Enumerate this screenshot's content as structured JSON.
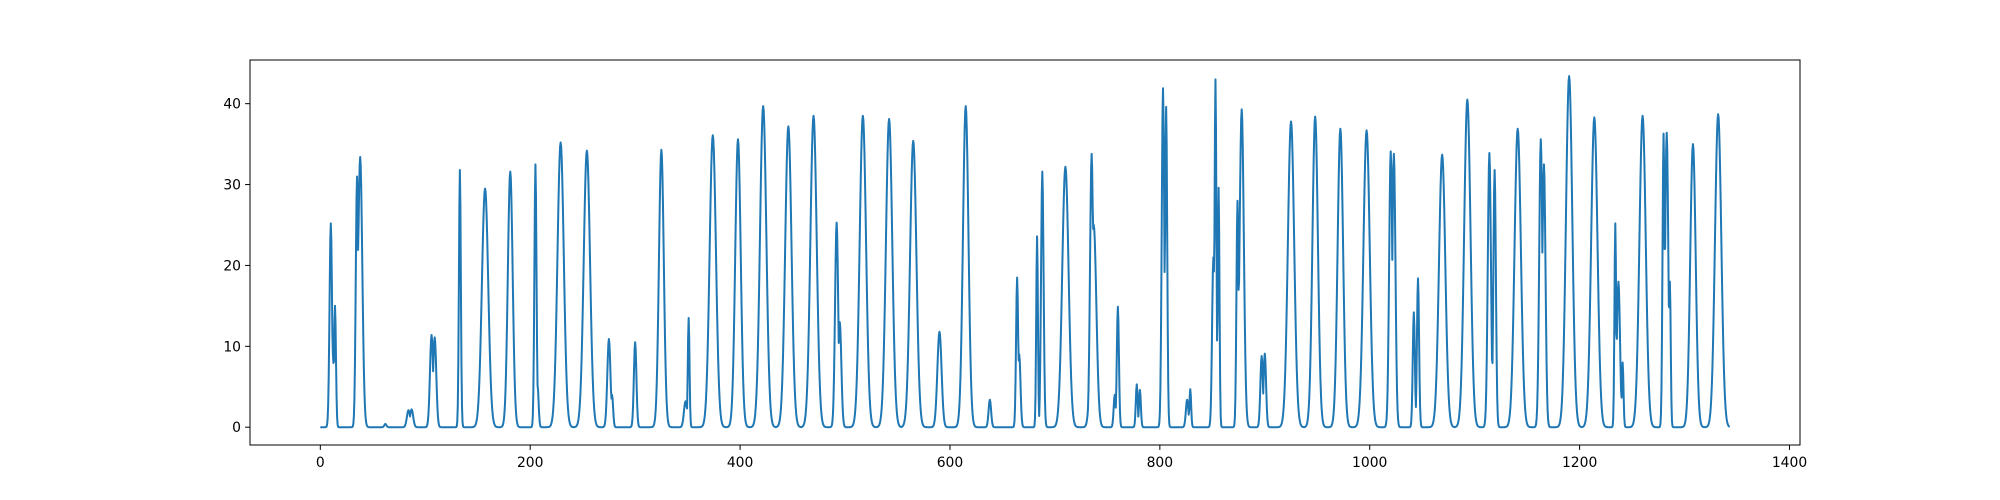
{
  "chart_data": {
    "type": "line",
    "title": "",
    "xlabel": "",
    "ylabel": "",
    "xlim": [
      -67,
      1410
    ],
    "ylim": [
      -2.2,
      45.4
    ],
    "grid": false,
    "legend": "none",
    "x_ticks": [
      0,
      200,
      400,
      600,
      800,
      1000,
      1200,
      1400
    ],
    "y_ticks": [
      0,
      10,
      20,
      30,
      40
    ],
    "x_tick_labels": [
      "0",
      "200",
      "400",
      "600",
      "800",
      "1000",
      "1200",
      "1400"
    ],
    "y_tick_labels": [
      "0",
      "10",
      "20",
      "30",
      "40"
    ],
    "x_start": 0,
    "x_end": 1343,
    "baseline": 0,
    "series": [
      {
        "color": "#1f77b4",
        "peaks": [
          {
            "x": 10,
            "y": 25.2,
            "w": 1.2
          },
          {
            "x": 12,
            "y": 9,
            "w": 1.0
          },
          {
            "x": 14,
            "y": 15,
            "w": 0.9
          },
          {
            "x": 35,
            "y": 31,
            "w": 1.2
          },
          {
            "x": 36,
            "y": 19,
            "w": 0.8
          },
          {
            "x": 38,
            "y": 33.4,
            "w": 2.0
          },
          {
            "x": 62,
            "y": 0.4,
            "w": 1.0
          },
          {
            "x": 84,
            "y": 2.1,
            "w": 1.5
          },
          {
            "x": 87,
            "y": 2.2,
            "w": 1.5
          },
          {
            "x": 106,
            "y": 11.4,
            "w": 1.5
          },
          {
            "x": 109,
            "y": 11.1,
            "w": 1.5
          },
          {
            "x": 133,
            "y": 31.8,
            "w": 0.9
          },
          {
            "x": 157,
            "y": 29.5,
            "w": 3.0
          },
          {
            "x": 181,
            "y": 31.6,
            "w": 2.3
          },
          {
            "x": 205,
            "y": 32.5,
            "w": 1.0
          },
          {
            "x": 207,
            "y": 5.2,
            "w": 1.0
          },
          {
            "x": 229,
            "y": 35.2,
            "w": 3.0
          },
          {
            "x": 254,
            "y": 34.2,
            "w": 3.0
          },
          {
            "x": 275,
            "y": 10.9,
            "w": 1.5
          },
          {
            "x": 278,
            "y": 4.0,
            "w": 1.0
          },
          {
            "x": 300,
            "y": 10.5,
            "w": 1.2
          },
          {
            "x": 325,
            "y": 34.3,
            "w": 2.3
          },
          {
            "x": 348,
            "y": 3.2,
            "w": 1.5
          },
          {
            "x": 351,
            "y": 13.5,
            "w": 0.8
          },
          {
            "x": 374,
            "y": 36.1,
            "w": 3.0
          },
          {
            "x": 398,
            "y": 35.6,
            "w": 2.6
          },
          {
            "x": 422,
            "y": 39.7,
            "w": 3.0
          },
          {
            "x": 446,
            "y": 37.2,
            "w": 3.0
          },
          {
            "x": 470,
            "y": 38.5,
            "w": 3.0
          },
          {
            "x": 492,
            "y": 25.3,
            "w": 1.5
          },
          {
            "x": 495,
            "y": 13.0,
            "w": 1.5
          },
          {
            "x": 517,
            "y": 38.5,
            "w": 3.0
          },
          {
            "x": 542,
            "y": 38.1,
            "w": 3.0
          },
          {
            "x": 565,
            "y": 35.4,
            "w": 3.0
          },
          {
            "x": 590,
            "y": 11.8,
            "w": 2.0
          },
          {
            "x": 615,
            "y": 39.7,
            "w": 2.6
          },
          {
            "x": 638,
            "y": 3.4,
            "w": 1.2
          },
          {
            "x": 664,
            "y": 18.5,
            "w": 1.0
          },
          {
            "x": 666,
            "y": 9.0,
            "w": 1.2
          },
          {
            "x": 683,
            "y": 23.6,
            "w": 0.8
          },
          {
            "x": 688,
            "y": 31.6,
            "w": 1.2
          },
          {
            "x": 710,
            "y": 32.2,
            "w": 3.0
          },
          {
            "x": 735,
            "y": 33.8,
            "w": 1.5
          },
          {
            "x": 737,
            "y": 25.0,
            "w": 2.5
          },
          {
            "x": 757,
            "y": 4.0,
            "w": 1.0
          },
          {
            "x": 760,
            "y": 14.9,
            "w": 1.0
          },
          {
            "x": 778,
            "y": 5.3,
            "w": 0.9
          },
          {
            "x": 781,
            "y": 4.6,
            "w": 0.9
          },
          {
            "x": 803,
            "y": 41.9,
            "w": 1.2
          },
          {
            "x": 806,
            "y": 39.6,
            "w": 1.0
          },
          {
            "x": 826,
            "y": 3.4,
            "w": 1.2
          },
          {
            "x": 829,
            "y": 4.7,
            "w": 0.8
          },
          {
            "x": 851,
            "y": 21.0,
            "w": 1.2
          },
          {
            "x": 853,
            "y": 43.0,
            "w": 0.9
          },
          {
            "x": 856,
            "y": 29.6,
            "w": 0.8
          },
          {
            "x": 874,
            "y": 28.0,
            "w": 1.0
          },
          {
            "x": 878,
            "y": 39.3,
            "w": 2.0
          },
          {
            "x": 897,
            "y": 8.8,
            "w": 1.2
          },
          {
            "x": 900,
            "y": 9.1,
            "w": 1.2
          },
          {
            "x": 925,
            "y": 37.8,
            "w": 3.0
          },
          {
            "x": 948,
            "y": 38.4,
            "w": 2.6
          },
          {
            "x": 972,
            "y": 36.9,
            "w": 2.6
          },
          {
            "x": 997,
            "y": 36.7,
            "w": 3.0
          },
          {
            "x": 1020,
            "y": 34.1,
            "w": 1.5
          },
          {
            "x": 1023,
            "y": 33.8,
            "w": 1.5
          },
          {
            "x": 1042,
            "y": 14.2,
            "w": 1.0
          },
          {
            "x": 1046,
            "y": 18.4,
            "w": 1.0
          },
          {
            "x": 1047,
            "y": 5.0,
            "w": 0.8
          },
          {
            "x": 1069,
            "y": 33.7,
            "w": 3.0
          },
          {
            "x": 1093,
            "y": 40.5,
            "w": 3.0
          },
          {
            "x": 1114,
            "y": 33.9,
            "w": 1.5
          },
          {
            "x": 1119,
            "y": 31.8,
            "w": 1.2
          },
          {
            "x": 1141,
            "y": 36.9,
            "w": 3.0
          },
          {
            "x": 1163,
            "y": 35.6,
            "w": 1.5
          },
          {
            "x": 1166,
            "y": 32.5,
            "w": 1.5
          },
          {
            "x": 1190,
            "y": 43.4,
            "w": 3.0
          },
          {
            "x": 1214,
            "y": 38.3,
            "w": 3.0
          },
          {
            "x": 1234,
            "y": 25.2,
            "w": 0.8
          },
          {
            "x": 1237,
            "y": 18.0,
            "w": 1.5
          },
          {
            "x": 1241,
            "y": 8.0,
            "w": 0.8
          },
          {
            "x": 1260,
            "y": 38.5,
            "w": 3.0
          },
          {
            "x": 1280,
            "y": 36.3,
            "w": 1.0
          },
          {
            "x": 1283,
            "y": 36.4,
            "w": 1.5
          },
          {
            "x": 1286,
            "y": 18.0,
            "w": 0.8
          },
          {
            "x": 1308,
            "y": 35.0,
            "w": 2.6
          },
          {
            "x": 1332,
            "y": 38.7,
            "w": 3.0
          }
        ]
      }
    ]
  }
}
